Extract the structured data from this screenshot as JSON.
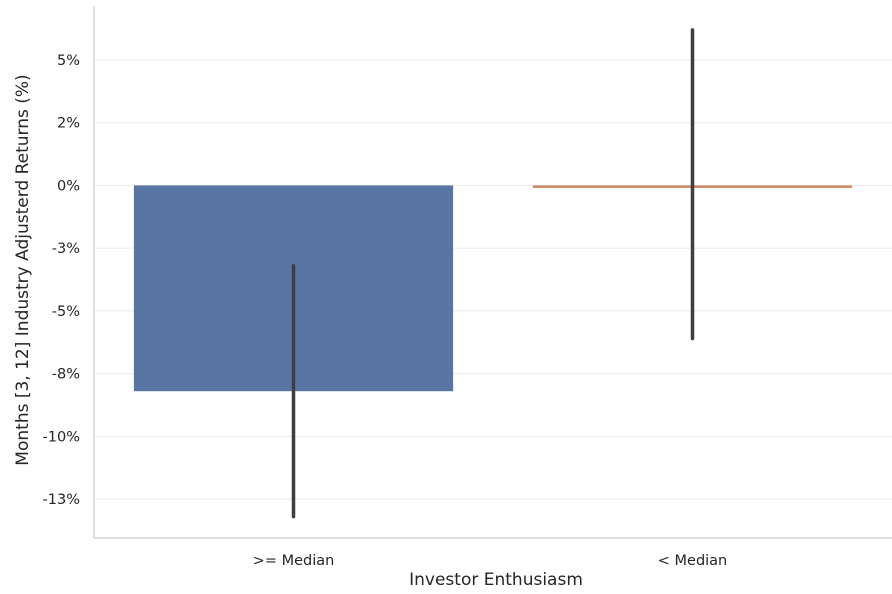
{
  "chart_data": {
    "type": "bar",
    "title": "",
    "xlabel": "Investor Enthusiasm",
    "ylabel": "Months [3, 12] Industry Adjusterd Returns (%)",
    "categories": [
      ">= Median",
      "< Median"
    ],
    "values": [
      -0.082,
      -0.001
    ],
    "error_low": [
      -0.132,
      -0.061
    ],
    "error_high": [
      -0.032,
      0.062
    ],
    "colors": [
      "#5975a4",
      "#cc8963"
    ],
    "ylim": [
      -0.1405,
      0.0715
    ],
    "yticks": [
      0.05,
      0.025,
      0.0,
      -0.025,
      -0.05,
      -0.075,
      -0.1,
      -0.125
    ],
    "ytick_labels": [
      "5%",
      "2%",
      "0%",
      "-3%",
      "-5%",
      "-8%",
      "-10%",
      "-13%"
    ],
    "grid": true
  }
}
